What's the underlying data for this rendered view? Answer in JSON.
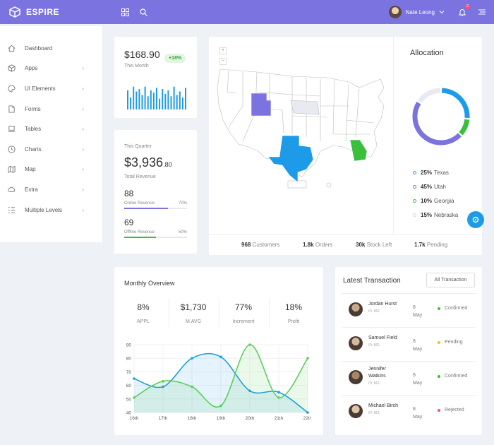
{
  "brand": {
    "name": "ESPIRE"
  },
  "user": {
    "name": "Nate Leong",
    "notifications": "2"
  },
  "sidebar": {
    "items": [
      {
        "label": "Dashboard",
        "icon": "home-icon",
        "chevron": false
      },
      {
        "label": "Apps",
        "icon": "cube-icon",
        "chevron": true
      },
      {
        "label": "UI Elements",
        "icon": "palette-icon",
        "chevron": true
      },
      {
        "label": "Forms",
        "icon": "file-icon",
        "chevron": true
      },
      {
        "label": "Tables",
        "icon": "laptop-icon",
        "chevron": true
      },
      {
        "label": "Charts",
        "icon": "clock-icon",
        "chevron": true
      },
      {
        "label": "Map",
        "icon": "map-icon",
        "chevron": true
      },
      {
        "label": "Extra",
        "icon": "cloud-icon",
        "chevron": true
      },
      {
        "label": "Multiple Levels",
        "icon": "list-icon",
        "chevron": true
      }
    ]
  },
  "month_card": {
    "amount": "$168.90",
    "label": "This Month",
    "badge": "+18%",
    "bars": [
      0.8,
      0.5,
      0.95,
      0.75,
      0.85,
      0.6,
      0.95,
      0.55,
      0.8,
      0.7,
      0.9,
      0.45,
      0.85,
      0.65,
      0.8,
      0.55,
      0.95,
      0.6,
      0.75,
      0.5,
      0.9
    ]
  },
  "quarter_card": {
    "label": "This Quarter",
    "amount_main": "$3,936",
    "amount_cents": ".80",
    "total_label": "Total Revenue",
    "online": {
      "value": "88",
      "label": "Online Revenue",
      "percent_label": "70%",
      "percent": 0.7,
      "color": "#7b74e0"
    },
    "offline": {
      "value": "69",
      "label": "Offline Revenue",
      "percent_label": "50%",
      "percent": 0.5,
      "color": "#3cbf3c"
    }
  },
  "map_card": {
    "zoom_in": "+",
    "zoom_out": "−",
    "stats": [
      {
        "value": "968",
        "label": "Customers"
      },
      {
        "value": "1.8k",
        "label": "Orders"
      },
      {
        "value": "30k",
        "label": "Stock Left"
      },
      {
        "value": "1.7k",
        "label": "Pending"
      }
    ],
    "allocation": {
      "title": "Allocation",
      "items": [
        {
          "percent_label": "25%",
          "name": "Texas",
          "value": 25,
          "color": "#1e9be8"
        },
        {
          "percent_label": "45%",
          "name": "Utah",
          "value": 45,
          "color": "#7b74e0"
        },
        {
          "percent_label": "10%",
          "name": "Georgia",
          "value": 10,
          "color": "#3cbf3c"
        },
        {
          "percent_label": "15%",
          "name": "Nebraska",
          "value": 15,
          "color": "#e8eaf2"
        }
      ]
    }
  },
  "monthly": {
    "title": "Monthly Overview",
    "stats": [
      {
        "value": "8%",
        "label": "APPL"
      },
      {
        "value": "$1,730",
        "label": "M.AVG"
      },
      {
        "value": "77%",
        "label": "Increment"
      },
      {
        "value": "18%",
        "label": "Profit"
      }
    ]
  },
  "chart_data": {
    "type": "area",
    "categories": [
      "16th",
      "17th",
      "18th",
      "19th",
      "20th",
      "21th",
      "22th"
    ],
    "ylim": [
      40,
      90
    ],
    "yticks": [
      40,
      50,
      60,
      70,
      80,
      90
    ],
    "grid": true,
    "series": [
      {
        "values": [
          65,
          59,
          80,
          81,
          56,
          55,
          40
        ],
        "color": "#1e9be8"
      },
      {
        "values": [
          51,
          63,
          59,
          45,
          90,
          51,
          80
        ],
        "color": "#5ccf5c"
      }
    ]
  },
  "transactions": {
    "title": "Latest Transaction",
    "button": "All Transaction",
    "rows": [
      {
        "name": "Jordan Hurst",
        "id": "ID: 861",
        "day": "8",
        "month": "May",
        "status": "Confirmed",
        "status_color": "#3cbf3c"
      },
      {
        "name": "Samuel Field",
        "id": "ID: 861",
        "day": "8",
        "month": "May",
        "status": "Pending",
        "status_color": "#f5c518"
      },
      {
        "name": "Jennifer Watkins",
        "id": "ID: 861",
        "day": "8",
        "month": "May",
        "status": "Confirmed",
        "status_color": "#3cbf3c"
      },
      {
        "name": "Michael Birch",
        "id": "ID: 861",
        "day": "8",
        "month": "May",
        "status": "Rejected",
        "status_color": "#ff4d6d"
      }
    ]
  },
  "colors": {
    "topbar": "#7b74e0",
    "accent_blue": "#1e9be8",
    "accent_green": "#3cbf3c",
    "accent_purple": "#7b74e0"
  }
}
